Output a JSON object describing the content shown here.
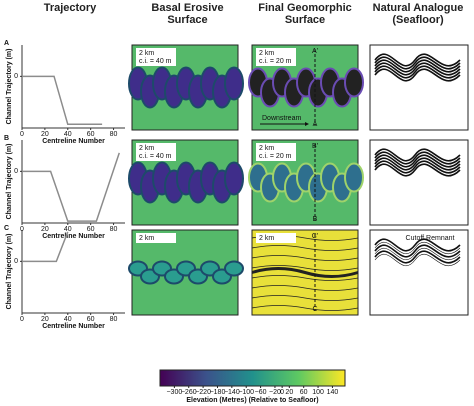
{
  "header": {
    "columns": [
      "Trajectory",
      "Basal Erosive Surface",
      "Final Geomorphic Surface",
      "Natural Analogue (Seafloor)"
    ]
  },
  "chart_data": [
    {
      "type": "line",
      "label": "A",
      "x_label": "Centreline Number",
      "y_label": "Channel Trajectory (m)",
      "x": [
        0,
        28,
        40,
        70
      ],
      "series": [
        {
          "color": "#8c8c8c",
          "values": [
            0,
            0,
            -260,
            -260
          ]
        }
      ],
      "xlim": [
        0,
        90
      ],
      "xticks": [
        0,
        20,
        40,
        60,
        80
      ],
      "ylim": [
        -280,
        170
      ],
      "yticks": [
        0
      ]
    },
    {
      "type": "line",
      "label": "B",
      "x_label": "Centreline Number",
      "y_label": "Channel Trajectory (m)",
      "x": [
        0,
        25,
        40,
        65,
        85
      ],
      "series": [
        {
          "color": "#8c8c8c",
          "values": [
            0,
            0,
            -270,
            -270,
            100
          ]
        }
      ],
      "xlim": [
        0,
        90
      ],
      "xticks": [
        0,
        20,
        40,
        60,
        80
      ],
      "ylim": [
        -280,
        170
      ],
      "yticks": [
        0
      ]
    },
    {
      "type": "line",
      "label": "C",
      "x_label": "Centreline Number",
      "y_label": "Channel Trajectory (m)",
      "x": [
        0,
        30,
        40
      ],
      "series": [
        {
          "color": "#8c8c8c",
          "values": [
            0,
            0,
            160
          ]
        }
      ],
      "xlim": [
        0,
        90
      ],
      "xticks": [
        0,
        20,
        40,
        60,
        80
      ],
      "ylim": [
        -280,
        170
      ],
      "yticks": [
        0
      ]
    }
  ],
  "maps": {
    "rows": [
      {
        "basal": {
          "scale": "2 km",
          "ci": "c.i. = 40 m"
        },
        "final": {
          "scale": "2 km",
          "ci": "c.i. = 20 m",
          "section_top": "A'",
          "section_bottom": "A",
          "arrow": "Downstream"
        }
      },
      {
        "basal": {
          "scale": "2 km",
          "ci": "c.i. = 40 m"
        },
        "final": {
          "scale": "2 km",
          "ci": "c.i. = 20 m",
          "section_top": "B'",
          "section_bottom": "B"
        }
      },
      {
        "basal": {
          "scale": "2 km"
        },
        "final": {
          "scale": "2 km",
          "section_top": "C'",
          "section_bottom": "C"
        }
      }
    ],
    "annotation": "Cutoff Remnant"
  },
  "colorbar": {
    "lim": [
      -340,
      175
    ],
    "ticks": [
      {
        "value": -300,
        "label": "−300"
      },
      {
        "value": -260,
        "label": "−260"
      },
      {
        "value": -220,
        "label": "−220"
      },
      {
        "value": -180,
        "label": "−180"
      },
      {
        "value": -140,
        "label": "−140"
      },
      {
        "value": -100,
        "label": "−100"
      },
      {
        "value": -60,
        "label": "−60"
      },
      {
        "value": -20,
        "label": "−20"
      },
      0,
      20,
      60,
      100,
      140
    ],
    "label": "Elevation (Metres)  (Relative to Seafloor)"
  }
}
